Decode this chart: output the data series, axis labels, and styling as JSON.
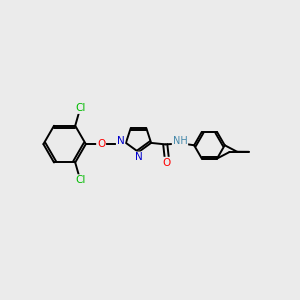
{
  "bg_color": "#ebebeb",
  "atom_colors": {
    "C": "#000000",
    "N": "#0000cc",
    "O": "#ff0000",
    "Cl": "#00bb00",
    "H": "#4488aa"
  },
  "bond_color": "#000000",
  "bond_width": 1.4,
  "figsize": [
    3.0,
    3.0
  ],
  "dpi": 100,
  "xlim": [
    0,
    10
  ],
  "ylim": [
    0,
    10
  ]
}
